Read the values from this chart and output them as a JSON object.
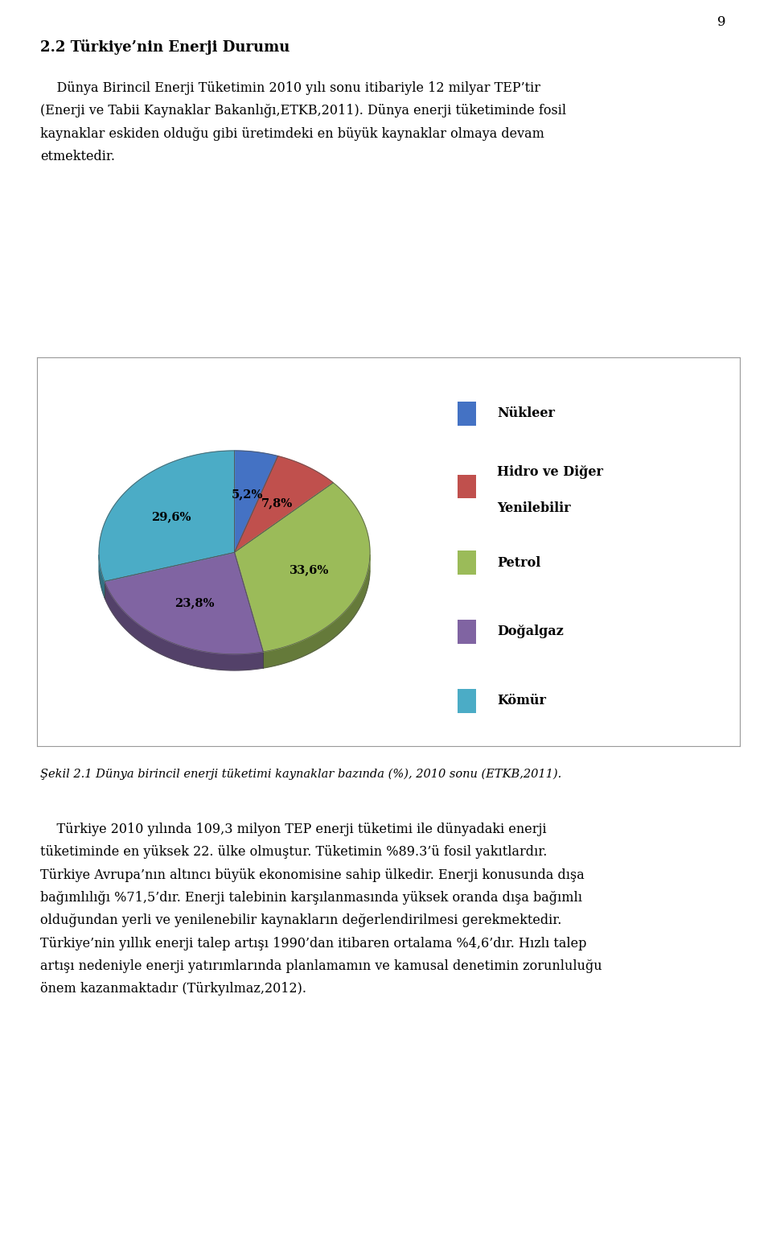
{
  "slices": [
    5.2,
    7.8,
    33.6,
    23.8,
    29.6
  ],
  "labels": [
    "5,2%",
    "7,8%",
    "33,6%",
    "23,8%",
    "29,6%"
  ],
  "colors": [
    "#4472C4",
    "#C0504D",
    "#9BBB59",
    "#8064A2",
    "#4BACC6"
  ],
  "dark_colors": [
    "#2F528F",
    "#943634",
    "#76923C",
    "#60497A",
    "#31849B"
  ],
  "legend_labels": [
    "Nükleer",
    "Hidro ve Diğer\nYenilebilir",
    "Petrol",
    "Doğalgaz",
    "Kömür"
  ],
  "startangle": 90,
  "figure_bg": "#ffffff",
  "box_bg": "#ffffff",
  "title_text": "2.2 Türkiye’nin Enerji Durumu",
  "para1_line1": "    Dünya Birincil Enerji Tüketimin 2010 yılı sonu itibariyle 12 milyar TEP’tir",
  "para1_line2": "(Enerji ve Tabii Kaynaklar Bakanlığı,ETKB,2011). Dünya enerji tüketiminde fosil",
  "para1_line3": "kaynaklar eskiden olduğu gibi üretimdeki en büyük kaynaklar olmaya devam",
  "para1_line4": "etmektedir.",
  "caption": "Şekil 2.1 Dünya birincil enerji tüketimi kaynaklar bazında (%), 2010 sonu (ETKB,2011).",
  "para2_line1": "    Türkiye 2010 yılında 109,3 milyon TEP enerji tüketimi ile dünyadaki enerji",
  "para2_line2": "tüketiminde en yüksek 22. ülke olmuştur. Tüketimin %89.3’ü fosil yakıtlardır.",
  "para2_line3": "Türkiye Avrupa’nın altıncı büyük ekonomisine sahip ülkedir. Enerji konusunda dışa",
  "para2_line4": "bağımlılığı %71,5’dır. Enerji talebinin karşılanmasında yüksek oranda dışa bağımlı",
  "para2_line5": "olduğundan yerli ve yenilenebilir kaynakların değerlendirilmesi gerekmektedir.",
  "para2_line6": "Türkiye’nin yıllık enerji talep artışı 1990’dan itibaren ortalama %4,6’dır. Hızlı talep",
  "para2_line7": "artışı nedeniyle enerji yatırımlarında planlamamın ve kamusal denetimin zorunluluğu",
  "para2_line8": "önem kazanmaktadır (Türkyılmaz,2012).",
  "page_num": "9"
}
